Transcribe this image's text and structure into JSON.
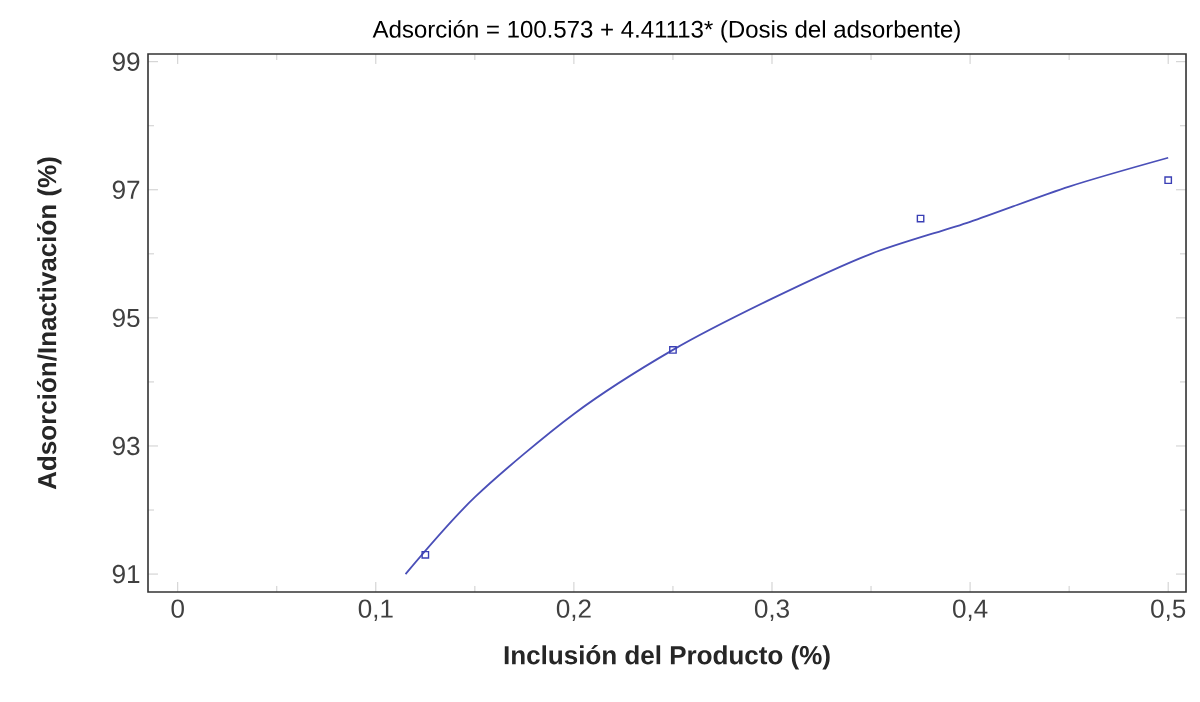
{
  "chart_data": {
    "type": "scatter",
    "title": "Adsorción = 100.573 + 4.41113* (Dosis del adsorbente)",
    "xlabel": "Inclusión del Producto (%)",
    "ylabel": "Adsorción/Inactivación (%)",
    "xlim": [
      -0.015,
      0.509
    ],
    "ylim": [
      90.72,
      99.12
    ],
    "xticks": [
      {
        "value": 0,
        "label": "0"
      },
      {
        "value": 0.1,
        "label": "0,1"
      },
      {
        "value": 0.2,
        "label": "0,2"
      },
      {
        "value": 0.3,
        "label": "0,3"
      },
      {
        "value": 0.4,
        "label": "0,4"
      },
      {
        "value": 0.5,
        "label": "0,5"
      }
    ],
    "yticks": [
      91,
      93,
      95,
      97,
      99
    ],
    "series": [
      {
        "marker": "square",
        "color": "#3a3fb5",
        "x": [
          0.125,
          0.25,
          0.375,
          0.5
        ],
        "values": [
          91.3,
          94.5,
          96.55,
          97.15
        ]
      },
      {
        "type": "line",
        "marker": "none",
        "line_style": "solid",
        "color": "#4a4fb8",
        "x": [
          0.115,
          0.15,
          0.2,
          0.25,
          0.3,
          0.35,
          0.4,
          0.45,
          0.5
        ],
        "values": [
          91.0,
          92.2,
          93.5,
          94.5,
          95.3,
          96.0,
          96.5,
          97.05,
          97.5
        ]
      }
    ]
  }
}
